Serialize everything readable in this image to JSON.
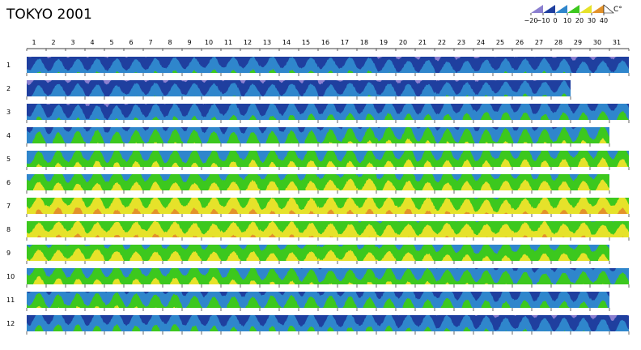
{
  "chart_data": {
    "type": "area",
    "title": "TOKYO  2001",
    "unit": "C°",
    "x_ticks": [
      "1",
      "2",
      "3",
      "4",
      "5",
      "6",
      "7",
      "8",
      "9",
      "10",
      "11",
      "12",
      "13",
      "14",
      "15",
      "16",
      "17",
      "18",
      "19",
      "20",
      "21",
      "22",
      "23",
      "24",
      "25",
      "26",
      "27",
      "28",
      "29",
      "30",
      "31"
    ],
    "rows": [
      {
        "label": "1",
        "days": 31,
        "mean": 5.5,
        "amp": 4.5,
        "trend": -0.5
      },
      {
        "label": "2",
        "days": 28,
        "mean": 6.0,
        "amp": 4.5,
        "trend": 1.0
      },
      {
        "label": "3",
        "days": 31,
        "mean": 9.0,
        "amp": 5.0,
        "trend": 2.0
      },
      {
        "label": "4",
        "days": 30,
        "mean": 15.0,
        "amp": 5.5,
        "trend": 2.0
      },
      {
        "label": "5",
        "days": 31,
        "mean": 19.0,
        "amp": 5.0,
        "trend": 2.0
      },
      {
        "label": "6",
        "days": 30,
        "mean": 22.5,
        "amp": 4.5,
        "trend": 1.5
      },
      {
        "label": "7",
        "days": 31,
        "mean": 28.5,
        "amp": 4.5,
        "trend": -0.5
      },
      {
        "label": "8",
        "days": 31,
        "mean": 27.0,
        "amp": 4.0,
        "trend": -1.0
      },
      {
        "label": "9",
        "days": 30,
        "mean": 23.0,
        "amp": 4.0,
        "trend": -2.5
      },
      {
        "label": "10",
        "days": 31,
        "mean": 18.0,
        "amp": 4.5,
        "trend": -3.0
      },
      {
        "label": "11",
        "days": 30,
        "mean": 13.0,
        "amp": 5.0,
        "trend": -3.0
      },
      {
        "label": "12",
        "days": 31,
        "mean": 8.0,
        "amp": 5.0,
        "trend": -2.5
      }
    ],
    "color_scale": {
      "ticks": [
        "−20",
        "−10",
        "0",
        "10",
        "20",
        "30",
        "40"
      ],
      "bands": [
        {
          "min": -20,
          "max": -10,
          "color": "#8b7fd0"
        },
        {
          "min": -10,
          "max": 0,
          "color": "#1f3f9f"
        },
        {
          "min": 0,
          "max": 10,
          "color": "#2f86cc"
        },
        {
          "min": 10,
          "max": 20,
          "color": "#3cc81e"
        },
        {
          "min": 20,
          "max": 30,
          "color": "#e6e22a"
        },
        {
          "min": 30,
          "max": 40,
          "color": "#e3922a"
        },
        {
          "min": 40,
          "max": 50,
          "color": "#e01010"
        }
      ]
    }
  }
}
